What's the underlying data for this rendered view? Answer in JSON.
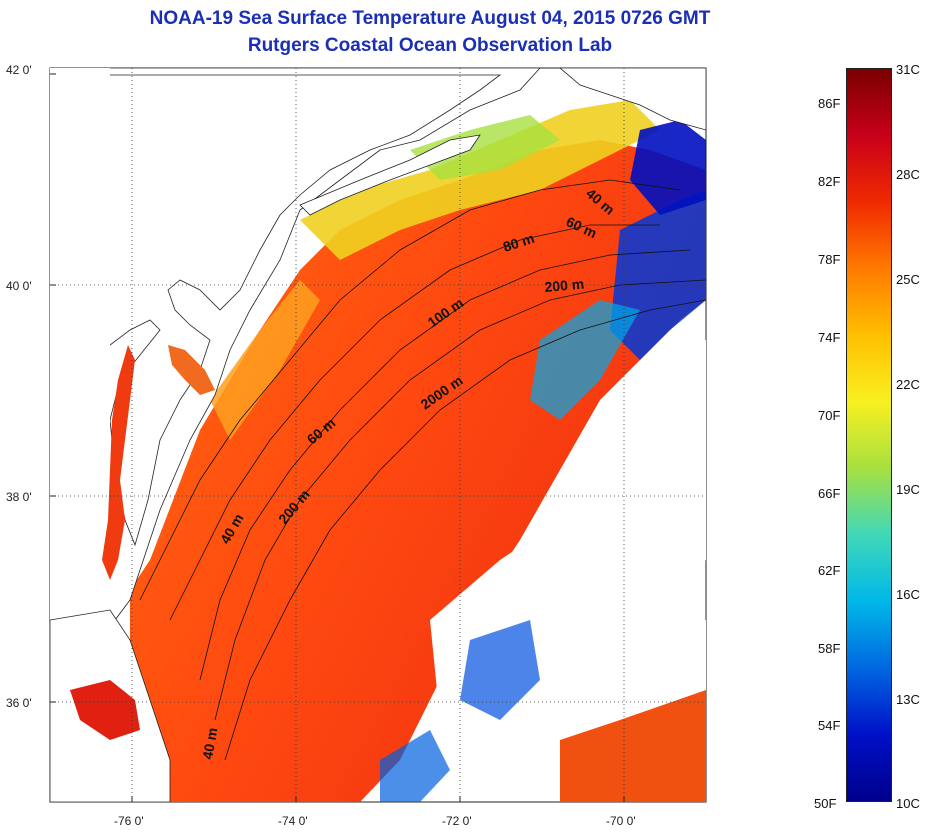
{
  "header": {
    "title": "NOAA-19 Sea Surface Temperature August 04, 2015 0726 GMT",
    "subtitle": "Rutgers Coastal Ocean Observation Lab"
  },
  "map": {
    "lat_ticks": [
      "42 0'",
      "40 0'",
      "38 0'",
      "36 0'"
    ],
    "lon_ticks": [
      "-76 0'",
      "-74 0'",
      "-72 0'",
      "-70 0'"
    ],
    "contour_labels": [
      "40 m",
      "60 m",
      "80 m",
      "200 m",
      "100 m",
      "2000 m",
      "60 m",
      "200 m",
      "40 m",
      "40 m"
    ]
  },
  "colorbar": {
    "fahrenheit": [
      "86F",
      "82F",
      "78F",
      "74F",
      "70F",
      "66F",
      "62F",
      "58F",
      "54F",
      "50F"
    ],
    "celsius": [
      "31C",
      "28C",
      "25C",
      "22C",
      "19C",
      "16C",
      "13C",
      "10C"
    ],
    "colors": [
      "#7a0000",
      "#c8001a",
      "#f02a00",
      "#ff7a00",
      "#ffc000",
      "#f8f020",
      "#a8e040",
      "#40d8b8",
      "#00b8e8",
      "#0068e0",
      "#0010c8",
      "#00008c"
    ]
  }
}
